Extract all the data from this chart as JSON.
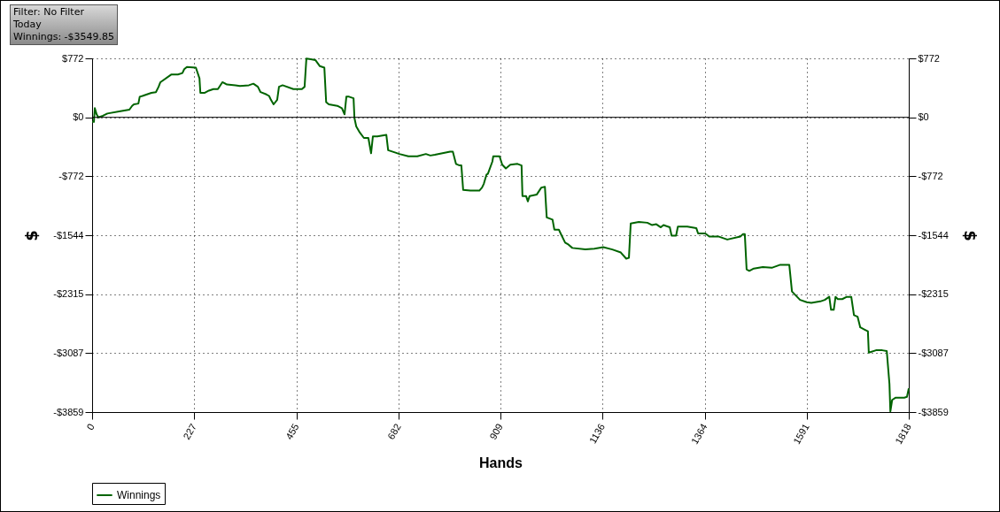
{
  "chart_data": {
    "type": "line",
    "xlabel": "Hands",
    "ylabel": "$",
    "y2label": "$",
    "annotations": [
      "Filter: No Filter",
      "Today",
      "Winnings: -$3549.85"
    ],
    "x": [
      0,
      4,
      6,
      10,
      14,
      24,
      34,
      63,
      83,
      89,
      93,
      103,
      106,
      112,
      132,
      142,
      148,
      152,
      176,
      191,
      201,
      205,
      211,
      231,
      239,
      241,
      250,
      260,
      270,
      280,
      290,
      300,
      319,
      329,
      349,
      359,
      369,
      375,
      388,
      394,
      398,
      404,
      412,
      416,
      424,
      448,
      467,
      473,
      477,
      487,
      497,
      507,
      517,
      521,
      527,
      546,
      556,
      562,
      566,
      572,
      582,
      584,
      588,
      596,
      605,
      615,
      621,
      625,
      635,
      655,
      659,
      674,
      684,
      704,
      724,
      743,
      753,
      763,
      797,
      803,
      810,
      818,
      822,
      826,
      842,
      852,
      862,
      868,
      872,
      878,
      881,
      891,
      893,
      907,
      913,
      921,
      931,
      947,
      956,
      958,
      966,
      970,
      974,
      990,
      1000,
      1008,
      1012,
      1025,
      1029,
      1039,
      1043,
      1053,
      1059,
      1069,
      1098,
      1118,
      1138,
      1158,
      1177,
      1189,
      1195,
      1199,
      1217,
      1236,
      1246,
      1256,
      1266,
      1272,
      1286,
      1290,
      1300,
      1304,
      1325,
      1345,
      1349,
      1365,
      1374,
      1394,
      1404,
      1414,
      1443,
      1449,
      1453,
      1457,
      1463,
      1473,
      1493,
      1513,
      1532,
      1552,
      1558,
      1566,
      1576,
      1591,
      1601,
      1621,
      1631,
      1641,
      1645,
      1651,
      1655,
      1660,
      1670,
      1680,
      1690,
      1696,
      1704,
      1710,
      1720,
      1727,
      1729,
      1745,
      1759,
      1769,
      1775,
      1777,
      1781,
      1789,
      1808,
      1814,
      1818
    ],
    "series": [
      {
        "name": "Winnings",
        "color": "#006400",
        "values": [
          -60,
          -60,
          120,
          40,
          0,
          20,
          50,
          80,
          100,
          150,
          170,
          180,
          270,
          280,
          320,
          330,
          400,
          460,
          560,
          560,
          580,
          630,
          660,
          650,
          510,
          320,
          320,
          350,
          370,
          370,
          460,
          430,
          420,
          410,
          420,
          440,
          400,
          330,
          300,
          280,
          230,
          170,
          230,
          400,
          420,
          370,
          370,
          400,
          770,
          760,
          750,
          670,
          650,
          200,
          170,
          150,
          120,
          40,
          270,
          270,
          250,
          -10,
          -120,
          -200,
          -270,
          -270,
          -470,
          -250,
          -250,
          -230,
          -430,
          -460,
          -480,
          -510,
          -510,
          -480,
          -500,
          -490,
          -450,
          -450,
          -610,
          -630,
          -630,
          -950,
          -960,
          -960,
          -960,
          -920,
          -870,
          -750,
          -740,
          -580,
          -510,
          -510,
          -620,
          -670,
          -620,
          -610,
          -630,
          -1030,
          -1030,
          -1100,
          -1030,
          -1010,
          -920,
          -910,
          -1310,
          -1340,
          -1470,
          -1470,
          -1520,
          -1640,
          -1660,
          -1710,
          -1730,
          -1720,
          -1700,
          -1730,
          -1770,
          -1850,
          -1840,
          -1390,
          -1370,
          -1380,
          -1410,
          -1400,
          -1440,
          -1410,
          -1440,
          -1550,
          -1550,
          -1430,
          -1430,
          -1450,
          -1520,
          -1520,
          -1560,
          -1560,
          -1580,
          -1600,
          -1560,
          -1530,
          -1530,
          -1990,
          -2010,
          -1980,
          -1960,
          -1970,
          -1930,
          -1930,
          -2280,
          -2330,
          -2390,
          -2420,
          -2430,
          -2410,
          -2390,
          -2350,
          -2520,
          -2520,
          -2350,
          -2380,
          -2380,
          -2350,
          -2350,
          -2590,
          -2610,
          -2750,
          -2780,
          -2800,
          -3080,
          -3050,
          -3050,
          -3060,
          -3490,
          -3850,
          -3700,
          -3670,
          -3670,
          -3660,
          -3550
        ]
      }
    ],
    "xlim": [
      0,
      1818
    ],
    "xticks": [
      0,
      227,
      455,
      682,
      909,
      1136,
      1364,
      1591,
      1818
    ],
    "ylim": [
      -3859,
      772
    ],
    "yticks": [
      {
        "value": -3859,
        "label": "-$3859"
      },
      {
        "value": -3087,
        "label": "-$3087"
      },
      {
        "value": -2315,
        "label": "-$2315"
      },
      {
        "value": -1544,
        "label": "-$1544"
      },
      {
        "value": -772,
        "label": "-$772"
      },
      {
        "value": 0,
        "label": "$0"
      },
      {
        "value": 772,
        "label": "$772"
      }
    ],
    "y2lim": [
      -3859,
      772
    ],
    "y2ticks": [
      {
        "value": -3859,
        "label": "-$3859"
      },
      {
        "value": -3087,
        "label": "-$3087"
      },
      {
        "value": -2315,
        "label": "-$2315"
      },
      {
        "value": -1544,
        "label": "-$1544"
      },
      {
        "value": -772,
        "label": "-$772"
      },
      {
        "value": 0,
        "label": "$0"
      },
      {
        "value": 772,
        "label": "$772"
      }
    ],
    "ref_lines": [
      {
        "axis": "y",
        "value": 0,
        "color": "#000000"
      }
    ],
    "grid": true,
    "legend": "bottom left",
    "line_style": "solid"
  }
}
